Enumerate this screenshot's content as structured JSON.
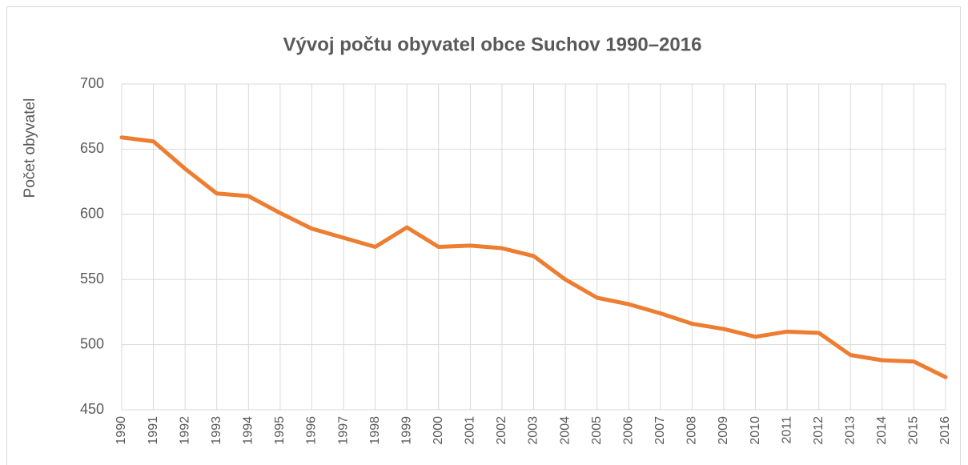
{
  "chart_data": {
    "type": "line",
    "title": "Vývoj počtu obyvatel obce Suchov 1990–2016",
    "y_label": "Počet obyvatel",
    "x": [
      1990,
      1991,
      1992,
      1993,
      1994,
      1995,
      1996,
      1997,
      1998,
      1999,
      2000,
      2001,
      2002,
      2003,
      2004,
      2005,
      2006,
      2007,
      2008,
      2009,
      2010,
      2011,
      2012,
      2013,
      2014,
      2015,
      2016
    ],
    "series": [
      {
        "name": "Počet obyvatel",
        "color": "#ed7d31",
        "values": [
          659,
          656,
          635,
          616,
          614,
          601,
          589,
          582,
          575,
          590,
          575,
          576,
          574,
          568,
          550,
          536,
          531,
          524,
          516,
          512,
          506,
          510,
          509,
          492,
          488,
          487,
          475
        ]
      }
    ],
    "xlim": [
      1990,
      2016
    ],
    "xticks": [
      1990,
      1991,
      1992,
      1993,
      1994,
      1995,
      1996,
      1997,
      1998,
      1999,
      2000,
      2001,
      2002,
      2003,
      2004,
      2005,
      2006,
      2007,
      2008,
      2009,
      2010,
      2011,
      2012,
      2013,
      2014,
      2015,
      2016
    ],
    "ylim": [
      450,
      700
    ],
    "yticks": [
      450,
      500,
      550,
      600,
      650,
      700
    ],
    "grid": true
  }
}
